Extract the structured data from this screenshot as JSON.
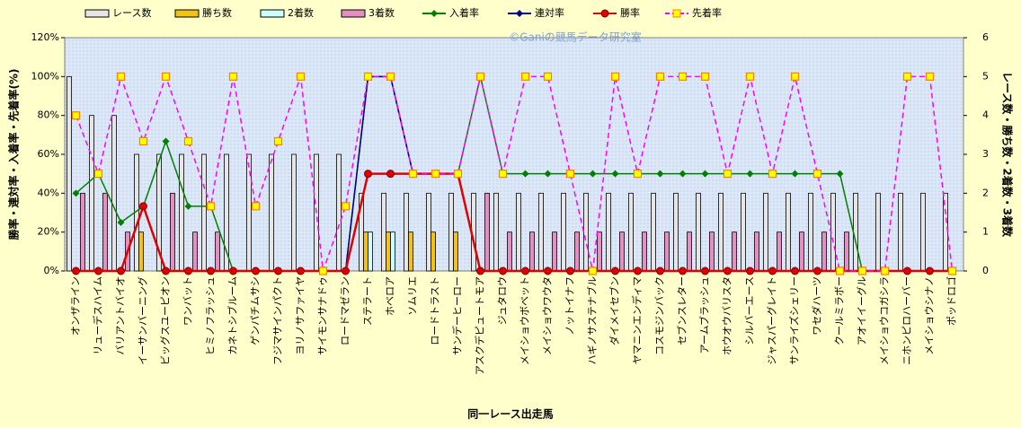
{
  "chart_data": {
    "type": "combo",
    "watermark": "©Ganiの競馬データ研究室",
    "x_label": "同一レース出走馬",
    "y_label": "勝率・連対率・入着率・先着率(%)",
    "y2_label": "レース数・勝ち数・2着数・3着数",
    "categories": [
      "オンザライン",
      "リューデスハイム",
      "バリアントバイオ",
      "イーサンバーニング",
      "ビッグスユーピオン",
      "ワンバット",
      "ヒミノフラッシュ",
      "カネトシブルーム",
      "ゲンパチムサシ",
      "フジマサインパクト",
      "ヨリノサファイヤ",
      "サイモンサナドゥ",
      "ロードマゼラン",
      "ステラート",
      "ホベロア",
      "ソムリエ",
      "ロードトラスト",
      "サンデーヒーロー",
      "アスクデピュートモア",
      "ジュタロウ",
      "メイショウボベット",
      "メイショウワウタ",
      "ノットイナフ",
      "ハギノサステナブル",
      "ダイメイセブン",
      "ヤマニンエンディマ",
      "コスモジンバック",
      "セブンスレター",
      "アームブラッシュ",
      "ホウオウバリスタ",
      "シルバーエース",
      "ジャスパーグレイト",
      "サンライズシェリー",
      "ワセダハーツ",
      "クールミラボー",
      "アオイイーグル",
      "メイショウコガシラ",
      "ニホンピロハーバー",
      "メイショウシナノ",
      "ポッドロゴ"
    ],
    "ylim": [
      0,
      120
    ],
    "yticks": [
      {
        "value": 0,
        "label": "0%"
      },
      {
        "value": 20,
        "label": "20%"
      },
      {
        "value": 40,
        "label": "40%"
      },
      {
        "value": 60,
        "label": "60%"
      },
      {
        "value": 80,
        "label": "80%"
      },
      {
        "value": 100,
        "label": "100%"
      },
      {
        "value": 120,
        "label": "120%"
      }
    ],
    "y2lim": [
      0,
      6
    ],
    "y2ticks": [
      0,
      1,
      2,
      3,
      4,
      5,
      6
    ],
    "series": [
      {
        "name": "レース数",
        "type": "bar",
        "axis": "y2",
        "color": "#e6e6e6",
        "values": [
          5,
          4,
          4,
          3,
          3,
          3,
          3,
          3,
          3,
          3,
          3,
          3,
          3,
          2,
          2,
          2,
          2,
          2,
          2,
          2,
          2,
          2,
          2,
          2,
          2,
          2,
          2,
          2,
          2,
          2,
          2,
          2,
          2,
          2,
          2,
          2,
          2,
          2,
          2,
          2
        ]
      },
      {
        "name": "勝ち数",
        "type": "bar",
        "axis": "y2",
        "color": "#f2c314",
        "values": [
          0,
          0,
          0,
          1,
          0,
          0,
          0,
          0,
          0,
          0,
          0,
          0,
          0,
          1,
          1,
          1,
          1,
          1,
          0,
          0,
          0,
          0,
          0,
          0,
          0,
          0,
          0,
          0,
          0,
          0,
          0,
          0,
          0,
          0,
          0,
          0,
          0,
          0,
          0,
          0
        ]
      },
      {
        "name": "2着数",
        "type": "bar",
        "axis": "y2",
        "color": "#ccffff",
        "values": [
          0,
          0,
          0,
          0,
          0,
          0,
          0,
          0,
          0,
          0,
          0,
          0,
          0,
          1,
          1,
          0,
          0,
          0,
          0,
          0,
          0,
          0,
          0,
          0,
          0,
          0,
          0,
          0,
          0,
          0,
          0,
          0,
          0,
          0,
          0,
          0,
          0,
          0,
          0,
          0
        ]
      },
      {
        "name": "3着数",
        "type": "bar",
        "axis": "y2",
        "color": "#e58fc0",
        "values": [
          2,
          2,
          1,
          0,
          2,
          1,
          1,
          0,
          0,
          0,
          0,
          0,
          0,
          0,
          0,
          0,
          0,
          0,
          2,
          1,
          1,
          1,
          1,
          1,
          1,
          1,
          1,
          1,
          1,
          1,
          1,
          1,
          1,
          1,
          1,
          0,
          0,
          0,
          0,
          0
        ]
      },
      {
        "name": "入着率",
        "type": "line",
        "axis": "y",
        "color": "#008000",
        "marker": "diamond",
        "marker_color": "#008000",
        "values": [
          40,
          50,
          25,
          33.3,
          66.7,
          33.3,
          33.3,
          0,
          0,
          0,
          0,
          0,
          0,
          100,
          100,
          50,
          50,
          50,
          100,
          50,
          50,
          50,
          50,
          50,
          50,
          50,
          50,
          50,
          50,
          50,
          50,
          50,
          50,
          50,
          50,
          0,
          0,
          0,
          0,
          0
        ]
      },
      {
        "name": "連対率",
        "type": "line",
        "axis": "y",
        "color": "#000080",
        "marker": "diamond",
        "marker_color": "#000080",
        "values": [
          0,
          0,
          0,
          33.3,
          0,
          0,
          0,
          0,
          0,
          0,
          0,
          0,
          0,
          100,
          100,
          50,
          50,
          50,
          0,
          0,
          0,
          0,
          0,
          0,
          0,
          0,
          0,
          0,
          0,
          0,
          0,
          0,
          0,
          0,
          0,
          0,
          0,
          0,
          0,
          0
        ]
      },
      {
        "name": "勝率",
        "type": "line",
        "axis": "y",
        "color": "#e00000",
        "marker": "circle",
        "marker_color": "#e00000",
        "values": [
          0,
          0,
          0,
          33.3,
          0,
          0,
          0,
          0,
          0,
          0,
          0,
          0,
          0,
          50,
          50,
          50,
          50,
          50,
          0,
          0,
          0,
          0,
          0,
          0,
          0,
          0,
          0,
          0,
          0,
          0,
          0,
          0,
          0,
          0,
          0,
          0,
          0,
          0,
          0,
          0
        ]
      },
      {
        "name": "先着率",
        "type": "line",
        "axis": "y",
        "color": "#ff00ff",
        "dashed": true,
        "marker": "square",
        "marker_color": "#ffff00",
        "values": [
          80,
          50,
          100,
          66.7,
          100,
          66.7,
          33.3,
          100,
          33.3,
          66.7,
          100,
          0,
          33.3,
          100,
          100,
          50,
          50,
          50,
          100,
          50,
          100,
          100,
          50,
          0,
          100,
          50,
          100,
          100,
          100,
          50,
          100,
          50,
          100,
          50,
          0,
          0,
          0,
          100,
          100,
          0
        ]
      }
    ]
  }
}
